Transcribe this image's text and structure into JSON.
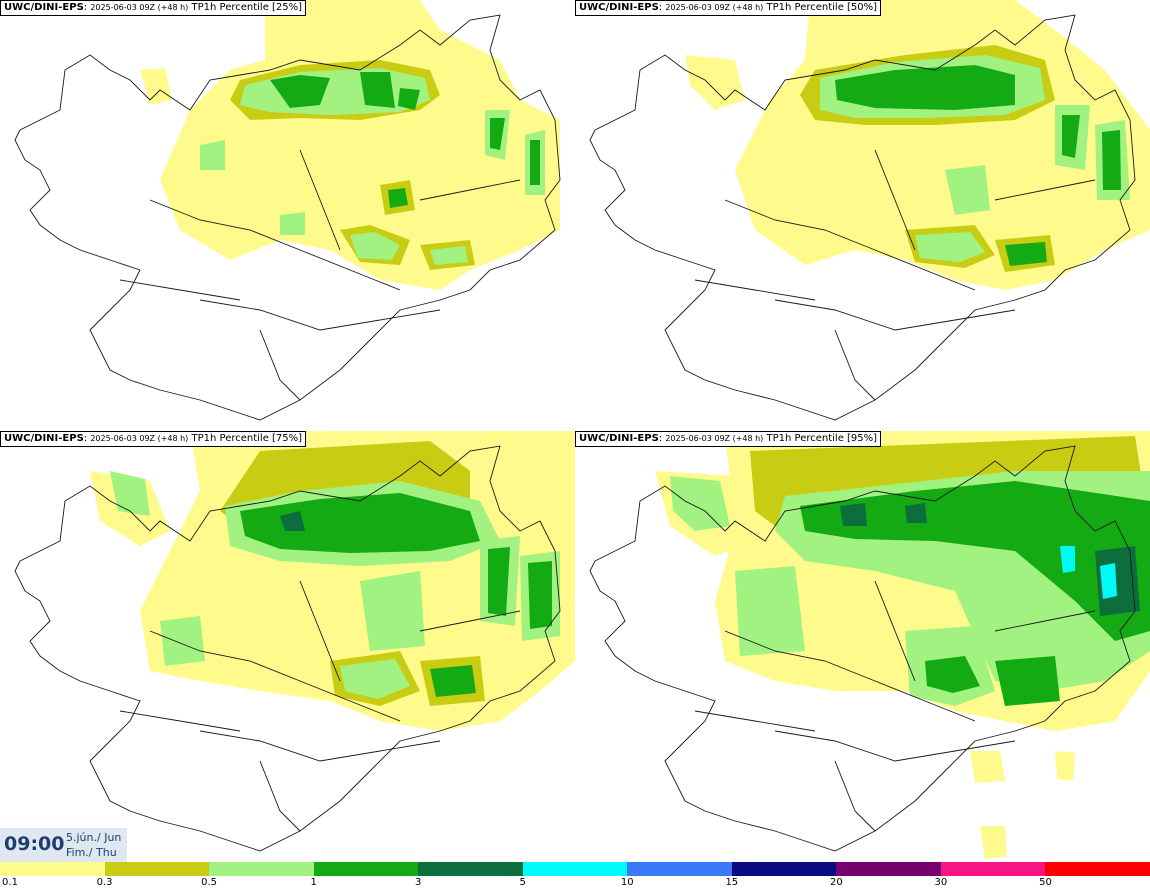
{
  "panels": [
    {
      "model": "UWC/DINI-EPS",
      "run": "2025-06-03 09Z (+48 h)",
      "title": "TP1h Percentile [25%]"
    },
    {
      "model": "UWC/DINI-EPS",
      "run": "2025-06-03 09Z (+48 h)",
      "title": "TP1h Percentile [50%]"
    },
    {
      "model": "UWC/DINI-EPS",
      "run": "2025-06-03 09Z (+48 h)",
      "title": "TP1h Percentile [75%]"
    },
    {
      "model": "UWC/DINI-EPS",
      "run": "2025-06-03 09Z (+48 h)",
      "title": "TP1h Percentile [95%]"
    }
  ],
  "valid_time": {
    "time": "09:00",
    "date": "5.jún./ Jun",
    "day": "Fim./ Thu"
  },
  "legend": {
    "labels": [
      "0.1",
      "0.3",
      "0.5",
      "1",
      "3",
      "5",
      "10",
      "15",
      "20",
      "30",
      "50"
    ],
    "colors": [
      "#fffa8c",
      "#c8cd14",
      "#a2f282",
      "#14aa14",
      "#0c6e3c",
      "#00fafa",
      "#3c78fa",
      "#0a0a82",
      "#78006e",
      "#fa1482",
      "#fa0000"
    ]
  },
  "colors": {
    "light_yellow": "#fffa8c",
    "olive": "#c8cd14",
    "light_green": "#a2f282",
    "green": "#14aa14",
    "dark_green": "#0c6e3c",
    "cyan": "#00fafa"
  }
}
